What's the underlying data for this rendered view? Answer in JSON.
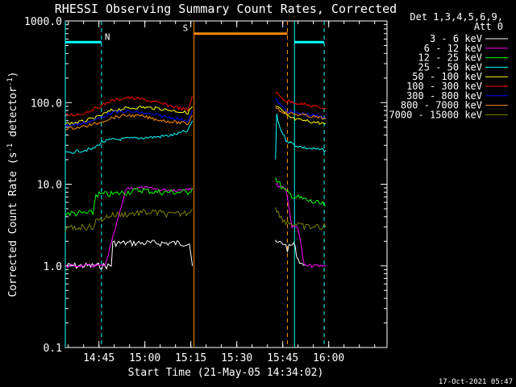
{
  "chart_data": {
    "type": "line",
    "title": "RHESSI Observing Summary Count Rates, Corrected",
    "xlabel": "Start Time (21-May-05 14:34:02)",
    "ylabel_parts": [
      "Corrected Count Rate (s",
      "-1",
      " detector",
      "-1",
      ")"
    ],
    "yscale": "log",
    "xlim_minutes_after_start": [
      0,
      105
    ],
    "ylim": [
      0.1,
      1000
    ],
    "grid": false,
    "x_ticks": [
      {
        "minute": 10.97,
        "label": "14:45"
      },
      {
        "minute": 25.97,
        "label": "15:00"
      },
      {
        "minute": 40.97,
        "label": "15:15"
      },
      {
        "minute": 55.97,
        "label": "15:30"
      },
      {
        "minute": 70.97,
        "label": "15:45"
      },
      {
        "minute": 85.97,
        "label": "16:00"
      }
    ],
    "y_ticks": [
      {
        "value": 0.1,
        "label": "0.1"
      },
      {
        "value": 1,
        "label": "1.0"
      },
      {
        "value": 10,
        "label": "10.0"
      },
      {
        "value": 100,
        "label": "100.0"
      },
      {
        "value": 1000,
        "label": "1000.0"
      }
    ],
    "legend_header": [
      "Det 1,3,4,5,6,9,",
      "Att 0"
    ],
    "legend_position": "right",
    "series": [
      {
        "name": "3 - 6 keV",
        "color": "#ffffff",
        "segments": [
          {
            "x": [
              0,
              15,
              15.5,
              18,
              24,
              30,
              34,
              38,
              40.5,
              41.5
            ],
            "y": [
              1,
              1,
              1.9,
              1.9,
              1.9,
              1.9,
              1.9,
              1.9,
              1.9,
              1
            ],
            "x2": [
              68.5,
              71.5,
              72.5,
              74.5,
              76,
              78
            ],
            "y2": [
              1.9,
              1.9,
              1.6,
              1.9,
              1.2,
              1
            ]
          }
        ]
      },
      {
        "name": "6 - 12 keV",
        "color": "#ff00ff",
        "segments": [
          {
            "x": [
              0,
              9,
              9.5,
              12,
              13,
              20,
              26,
              32,
              37,
              40.5,
              41.5
            ],
            "y": [
              1,
              1,
              1,
              1,
              1,
              9,
              9,
              8.5,
              8.5,
              9,
              9
            ],
            "x2": [
              68.6,
              70,
              72,
              74,
              76,
              78,
              80,
              85
            ],
            "y2": [
              10,
              9.5,
              9,
              3,
              3,
              1,
              1,
              1
            ]
          }
        ]
      },
      {
        "name": "12 - 25 keV",
        "color": "#00ff00",
        "segments": [
          {
            "x": [
              0,
              5,
              9,
              10,
              15,
              20,
              25,
              30,
              35,
              40,
              41.5
            ],
            "y": [
              4.4,
              4.4,
              4.4,
              7.5,
              7.5,
              8,
              8.5,
              8,
              8,
              8,
              9
            ],
            "x2": [
              68.6,
              70,
              72,
              75,
              78,
              81,
              85
            ],
            "y2": [
              12,
              10,
              8,
              7,
              6.5,
              6,
              5.5
            ]
          }
        ]
      },
      {
        "name": "25 - 50 keV",
        "color": "#00ffff",
        "segments": [
          {
            "x": [
              0,
              3,
              6,
              9,
              12,
              15,
              20,
              25,
              30,
              35,
              40,
              41.5
            ],
            "y": [
              24,
              25,
              26,
              27,
              33,
              35,
              36,
              37,
              38,
              40,
              45,
              60
            ],
            "x2": [
              68.6,
              69,
              70,
              72,
              75,
              78,
              81,
              85
            ],
            "y2": [
              20,
              70,
              50,
              35,
              30,
              28,
              27,
              26
            ]
          }
        ]
      },
      {
        "name": "50 - 100 keV",
        "color": "#ffff00",
        "segments": [
          {
            "x": [
              0,
              5,
              10,
              15,
              20,
              25,
              30,
              35,
              40,
              41.5
            ],
            "y": [
              55,
              58,
              65,
              80,
              85,
              88,
              85,
              80,
              75,
              90
            ],
            "x2": [
              68.6,
              70,
              72,
              75,
              78,
              81,
              85
            ],
            "y2": [
              90,
              85,
              70,
              62,
              60,
              58,
              55
            ]
          }
        ]
      },
      {
        "name": "100 - 300 keV",
        "color": "#ff0000",
        "segments": [
          {
            "x": [
              0,
              5,
              10,
              15,
              20,
              25,
              30,
              35,
              40,
              41.5
            ],
            "y": [
              70,
              72,
              85,
              105,
              115,
              110,
              100,
              90,
              80,
              120
            ],
            "x2": [
              68.6,
              70,
              72,
              75,
              78,
              81,
              85
            ],
            "y2": [
              135,
              120,
              105,
              100,
              95,
              90,
              85
            ]
          }
        ]
      },
      {
        "name": "300 - 800 keV",
        "color": "#0000ff",
        "segments": [
          {
            "x": [
              0,
              5,
              10,
              15,
              20,
              25,
              30,
              35,
              40,
              41.5
            ],
            "y": [
              52,
              55,
              62,
              75,
              78,
              75,
              70,
              65,
              60,
              80
            ],
            "x2": [
              68.6,
              70,
              72,
              75,
              78,
              81,
              85
            ],
            "y2": [
              110,
              95,
              80,
              75,
              72,
              70,
              65
            ]
          }
        ]
      },
      {
        "name": "800 - 7000 keV",
        "color": "#ff8c00",
        "segments": [
          {
            "x": [
              0,
              5,
              10,
              15,
              20,
              25,
              30,
              35,
              40,
              41.5
            ],
            "y": [
              48,
              50,
              55,
              65,
              70,
              68,
              62,
              58,
              55,
              70
            ],
            "x2": [
              68.6,
              70,
              72,
              75,
              78,
              81,
              85
            ],
            "y2": [
              90,
              80,
              75,
              72,
              70,
              67,
              63
            ]
          },
          {
            "x": [
              42,
              72.5
            ],
            "y": [
              700,
              700
            ]
          }
        ]
      },
      {
        "name": "7000 - 15000 keV",
        "color": "#808000",
        "segments": [
          {
            "x": [
              0,
              5,
              9,
              10,
              15,
              20,
              25,
              30,
              35,
              40,
              41.5
            ],
            "y": [
              2.8,
              3,
              3,
              3.5,
              4.2,
              4.3,
              4.5,
              4.5,
              4.2,
              4.5,
              5
            ],
            "x2": [
              68.6,
              70,
              72,
              75,
              78,
              81,
              85
            ],
            "y2": [
              5.5,
              4,
              3.5,
              3.2,
              3,
              3,
              3
            ]
          }
        ]
      }
    ],
    "annotations": [
      {
        "label": "N",
        "color": "#00ffff",
        "x_range": [
          0,
          11.8
        ],
        "y": 550
      },
      {
        "label": "S",
        "color": "#ff8c00",
        "x_range": [
          42,
          72.5
        ],
        "y": 700
      }
    ],
    "vlines": [
      {
        "minute": 0,
        "color": "#00ffff",
        "style": "solid"
      },
      {
        "minute": 11.8,
        "color": "#00ffff",
        "style": "dashed"
      },
      {
        "minute": 42.0,
        "color": "#ff8c00",
        "style": "solid"
      },
      {
        "minute": 72.5,
        "color": "#ff8c00",
        "style": "dashed"
      },
      {
        "minute": 74.8,
        "color": "#00ffff",
        "style": "solid"
      },
      {
        "minute": 84.5,
        "color": "#00ffff",
        "style": "dashed"
      }
    ],
    "cyan_tops": [
      {
        "x_range": [
          0,
          11.8
        ],
        "y": 550
      },
      {
        "x_range": [
          74.8,
          84.5
        ],
        "y": 550
      }
    ],
    "footer": "17-Oct-2021 05:47"
  }
}
